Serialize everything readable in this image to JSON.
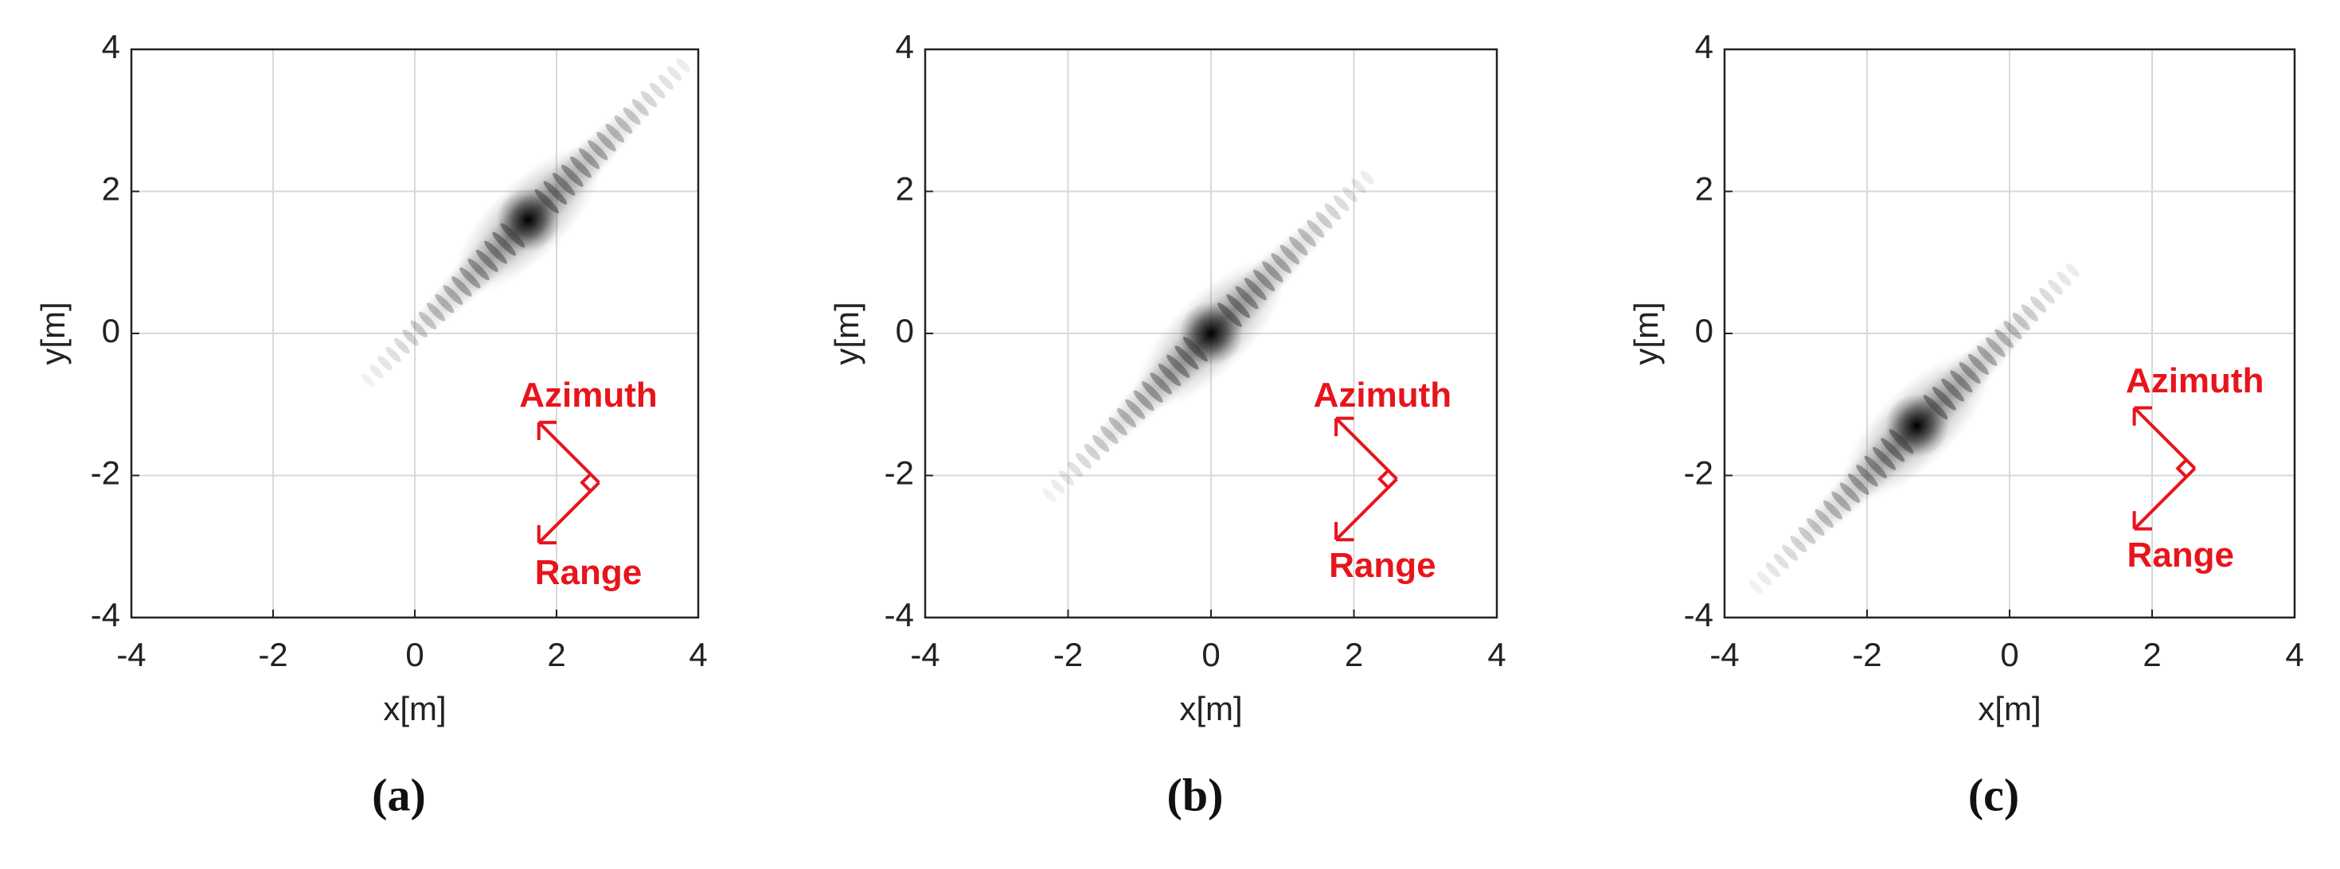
{
  "chart_data": [
    {
      "type": "image",
      "caption": "(a)",
      "x_label": "x[m]",
      "y_label": "y[m]",
      "xlim": [
        -4,
        4
      ],
      "ylim": [
        -4,
        4
      ],
      "xticks": [
        -4,
        -2,
        0,
        2,
        4
      ],
      "yticks": [
        -4,
        -2,
        0,
        2,
        4
      ],
      "grid": true,
      "x": [
        1.6
      ],
      "values": [
        1.6
      ],
      "annotations": [
        "Azimuth",
        "Range"
      ],
      "annotation_color": "#e8141c"
    },
    {
      "type": "image",
      "caption": "(b)",
      "x_label": "x[m]",
      "y_label": "y[m]",
      "xlim": [
        -4,
        4
      ],
      "ylim": [
        -4,
        4
      ],
      "xticks": [
        -4,
        -2,
        0,
        2,
        4
      ],
      "yticks": [
        -4,
        -2,
        0,
        2,
        4
      ],
      "grid": true,
      "x": [
        0
      ],
      "values": [
        0
      ],
      "annotations": [
        "Azimuth",
        "Range"
      ],
      "annotation_color": "#e8141c"
    },
    {
      "type": "image",
      "caption": "(c)",
      "x_label": "x[m]",
      "y_label": "y[m]",
      "xlim": [
        -4,
        4
      ],
      "ylim": [
        -4,
        4
      ],
      "xticks": [
        -4,
        -2,
        0,
        2,
        4
      ],
      "yticks": [
        -4,
        -2,
        0,
        2,
        4
      ],
      "grid": true,
      "x": [
        -1.3
      ],
      "values": [
        -1.3
      ],
      "annotations": [
        "Azimuth",
        "Range"
      ],
      "annotation_color": "#e8141c"
    }
  ]
}
